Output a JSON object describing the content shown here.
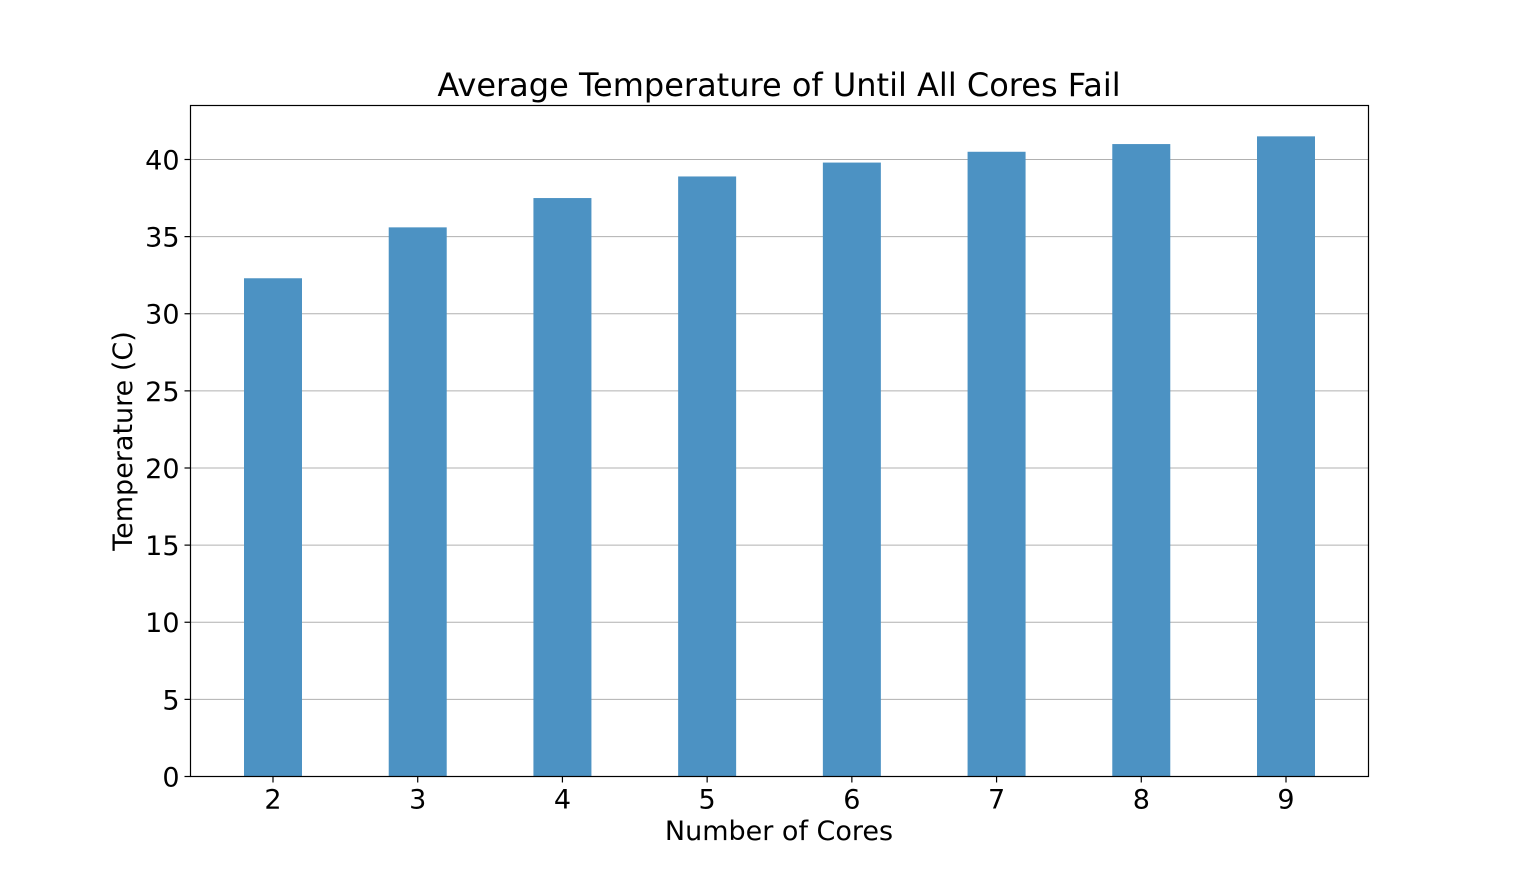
{
  "chart_data": {
    "type": "bar",
    "title": "Average Temperature of Until All Cores Fail",
    "xlabel": "Number of Cores",
    "ylabel": "Temperature (C)",
    "categories": [
      "2",
      "3",
      "4",
      "5",
      "6",
      "7",
      "8",
      "9"
    ],
    "values": [
      32.3,
      35.6,
      37.5,
      38.9,
      39.8,
      40.5,
      41.0,
      41.5
    ],
    "ylim": [
      0,
      43.5
    ],
    "yticks": [
      0,
      5,
      10,
      15,
      20,
      25,
      30,
      35,
      40
    ],
    "grid": "horizontal",
    "legend": "none",
    "bar_color": "#4c92c3",
    "grid_color": "#b0b0b0"
  }
}
